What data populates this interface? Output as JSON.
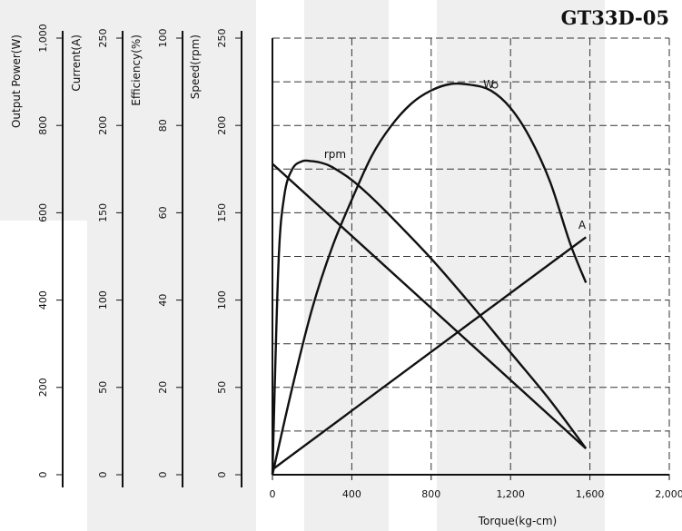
{
  "chart_data": {
    "type": "line",
    "title": "GT33D-05",
    "xlabel": "Torque(kg-cm)",
    "xlim": [
      0,
      2000
    ],
    "x_ticks": [
      "0",
      "400",
      "800",
      "1,200",
      "1,600",
      "2,000"
    ],
    "grid": true,
    "left_axes": [
      {
        "key": "power",
        "label": "Output Power(W)",
        "ylim": [
          0,
          1000
        ],
        "ticks": [
          "0",
          "200",
          "400",
          "600",
          "800",
          "1,000"
        ]
      },
      {
        "key": "current",
        "label": "Current(A)",
        "ylim": [
          0,
          250
        ],
        "ticks": [
          "0",
          "50",
          "100",
          "150",
          "200",
          "250"
        ]
      },
      {
        "key": "efficiency",
        "label": "Efficiency(%)",
        "ylim": [
          0,
          100
        ],
        "ticks": [
          "0",
          "20",
          "40",
          "60",
          "80",
          "100"
        ]
      },
      {
        "key": "speed",
        "label": "Speed(rpm)",
        "ylim": [
          0,
          250
        ],
        "ticks": [
          "0",
          "50",
          "100",
          "150",
          "200",
          "250"
        ]
      }
    ],
    "series": [
      {
        "name": "W",
        "axis": "power",
        "x": [
          0,
          100,
          200,
          300,
          400,
          500,
          600,
          700,
          800,
          900,
          1000,
          1100,
          1200,
          1300,
          1400,
          1500,
          1580
        ],
        "y": [
          0,
          200,
          380,
          520,
          630,
          730,
          800,
          850,
          880,
          895,
          893,
          880,
          840,
          770,
          670,
          530,
          440
        ]
      },
      {
        "name": "rpm",
        "axis": "efficiency",
        "x": [
          0,
          30,
          60,
          100,
          150,
          200,
          250,
          300,
          400,
          500,
          600,
          800,
          1000,
          1200,
          1400,
          1580
        ],
        "y": [
          0,
          48,
          64,
          70,
          71.8,
          71.8,
          71.4,
          70.5,
          67.5,
          63.5,
          59,
          49.5,
          39,
          28,
          17,
          6
        ]
      },
      {
        "name": "",
        "axis": "speed",
        "x": [
          0,
          1580
        ],
        "y": [
          178,
          15
        ]
      },
      {
        "name": "A",
        "axis": "current",
        "x": [
          0,
          1580
        ],
        "y": [
          3,
          136
        ]
      }
    ]
  }
}
